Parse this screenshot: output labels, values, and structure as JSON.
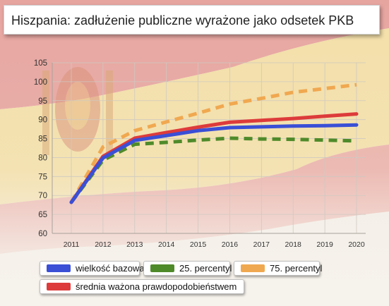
{
  "title": "Hiszpania: zadłużenie publiczne wyrażone jako odsetek PKB",
  "colors": {
    "blue": "#3a4fd6",
    "green": "#4f8a2a",
    "orange": "#f0a850",
    "red": "#dd3b3b"
  },
  "chart_data": {
    "type": "line",
    "x": [
      "2011",
      "2012",
      "2013",
      "2014",
      "2015",
      "2016",
      "2017",
      "2018",
      "2019",
      "2020"
    ],
    "ylim": [
      60,
      105
    ],
    "yticks": [
      60,
      65,
      70,
      75,
      80,
      85,
      90,
      95,
      100,
      105
    ],
    "grid": true,
    "legend_position": "bottom",
    "series": [
      {
        "name": "wielkość bazowa",
        "style": "solid",
        "color": "#3a4fd6",
        "values": [
          68.2,
          79.9,
          84.5,
          85.8,
          87.1,
          87.9,
          88.1,
          88.3,
          88.4,
          88.6
        ]
      },
      {
        "name": "25. percentyl",
        "style": "dashed",
        "color": "#4f8a2a",
        "values": [
          68.2,
          79.3,
          83.5,
          84.0,
          84.6,
          85.1,
          84.9,
          84.8,
          84.6,
          84.4
        ]
      },
      {
        "name": "75. percentyl",
        "style": "dashed",
        "color": "#f0a850",
        "values": [
          68.2,
          82.8,
          87.1,
          89.4,
          91.7,
          94.1,
          95.6,
          97.2,
          98.2,
          99.2
        ]
      },
      {
        "name": "średnia ważona prawdopodobieństwem",
        "style": "solid",
        "color": "#dd3b3b",
        "values": [
          68.2,
          80.3,
          85.1,
          86.6,
          88.0,
          89.3,
          89.8,
          90.3,
          90.9,
          91.5
        ]
      }
    ]
  }
}
